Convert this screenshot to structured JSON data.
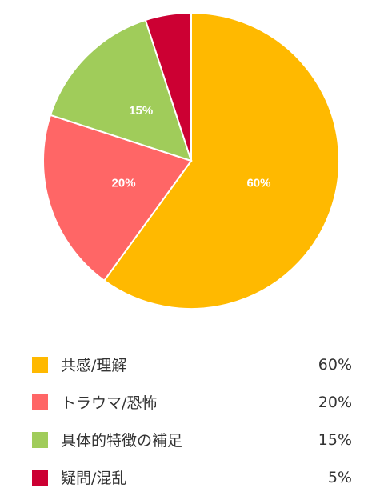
{
  "chart_data": {
    "type": "pie",
    "categories": [
      "共感/理解",
      "トラウマ/恐怖",
      "具体的特徴の補足",
      "疑問/混乱"
    ],
    "values": [
      60,
      20,
      15,
      5
    ],
    "labels": [
      "60%",
      "20%",
      "15%",
      "5%"
    ],
    "colors": [
      "#FFB900",
      "#FF6666",
      "#A0CC5A",
      "#CC0033"
    ],
    "slice_labels_shown": [
      true,
      true,
      true,
      false
    ],
    "start": "top",
    "direction": "clockwise",
    "legend_position": "bottom"
  }
}
